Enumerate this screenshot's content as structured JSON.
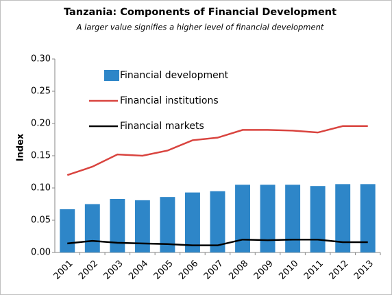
{
  "chart_data": {
    "type": "bar",
    "title": "Tanzania: Components of Financial Development",
    "subtitle": "A larger value signifies a higher level of financial development",
    "y_label": "Index",
    "categories": [
      "2001",
      "2002",
      "2003",
      "2004",
      "2005",
      "2006",
      "2007",
      "2008",
      "2009",
      "2010",
      "2011",
      "2012",
      "2013"
    ],
    "series": [
      {
        "name": "Financial development",
        "type": "bar",
        "color": "#2e86c8",
        "values": [
          0.067,
          0.075,
          0.083,
          0.081,
          0.086,
          0.093,
          0.095,
          0.105,
          0.105,
          0.105,
          0.103,
          0.106,
          0.106
        ]
      },
      {
        "name": "Financial institutions",
        "type": "line",
        "color": "#d9443f",
        "values": [
          0.12,
          0.133,
          0.152,
          0.15,
          0.158,
          0.174,
          0.178,
          0.19,
          0.19,
          0.189,
          0.186,
          0.196,
          0.196
        ]
      },
      {
        "name": "Financial markets",
        "type": "line",
        "color": "#000000",
        "values": [
          0.014,
          0.018,
          0.015,
          0.014,
          0.013,
          0.011,
          0.011,
          0.02,
          0.019,
          0.02,
          0.02,
          0.016,
          0.016
        ]
      }
    ],
    "ylim": [
      0,
      0.3
    ],
    "yticks": [
      {
        "value": 0,
        "label": "0.00"
      },
      {
        "value": 0.05,
        "label": "0.05"
      },
      {
        "value": 0.1,
        "label": "0.10"
      },
      {
        "value": 0.15,
        "label": "0.15"
      },
      {
        "value": 0.2,
        "label": "0.20"
      },
      {
        "value": 0.25,
        "label": "0.25"
      },
      {
        "value": 0.3,
        "label": "0.30"
      }
    ],
    "grid": false,
    "legend": "upper left"
  }
}
